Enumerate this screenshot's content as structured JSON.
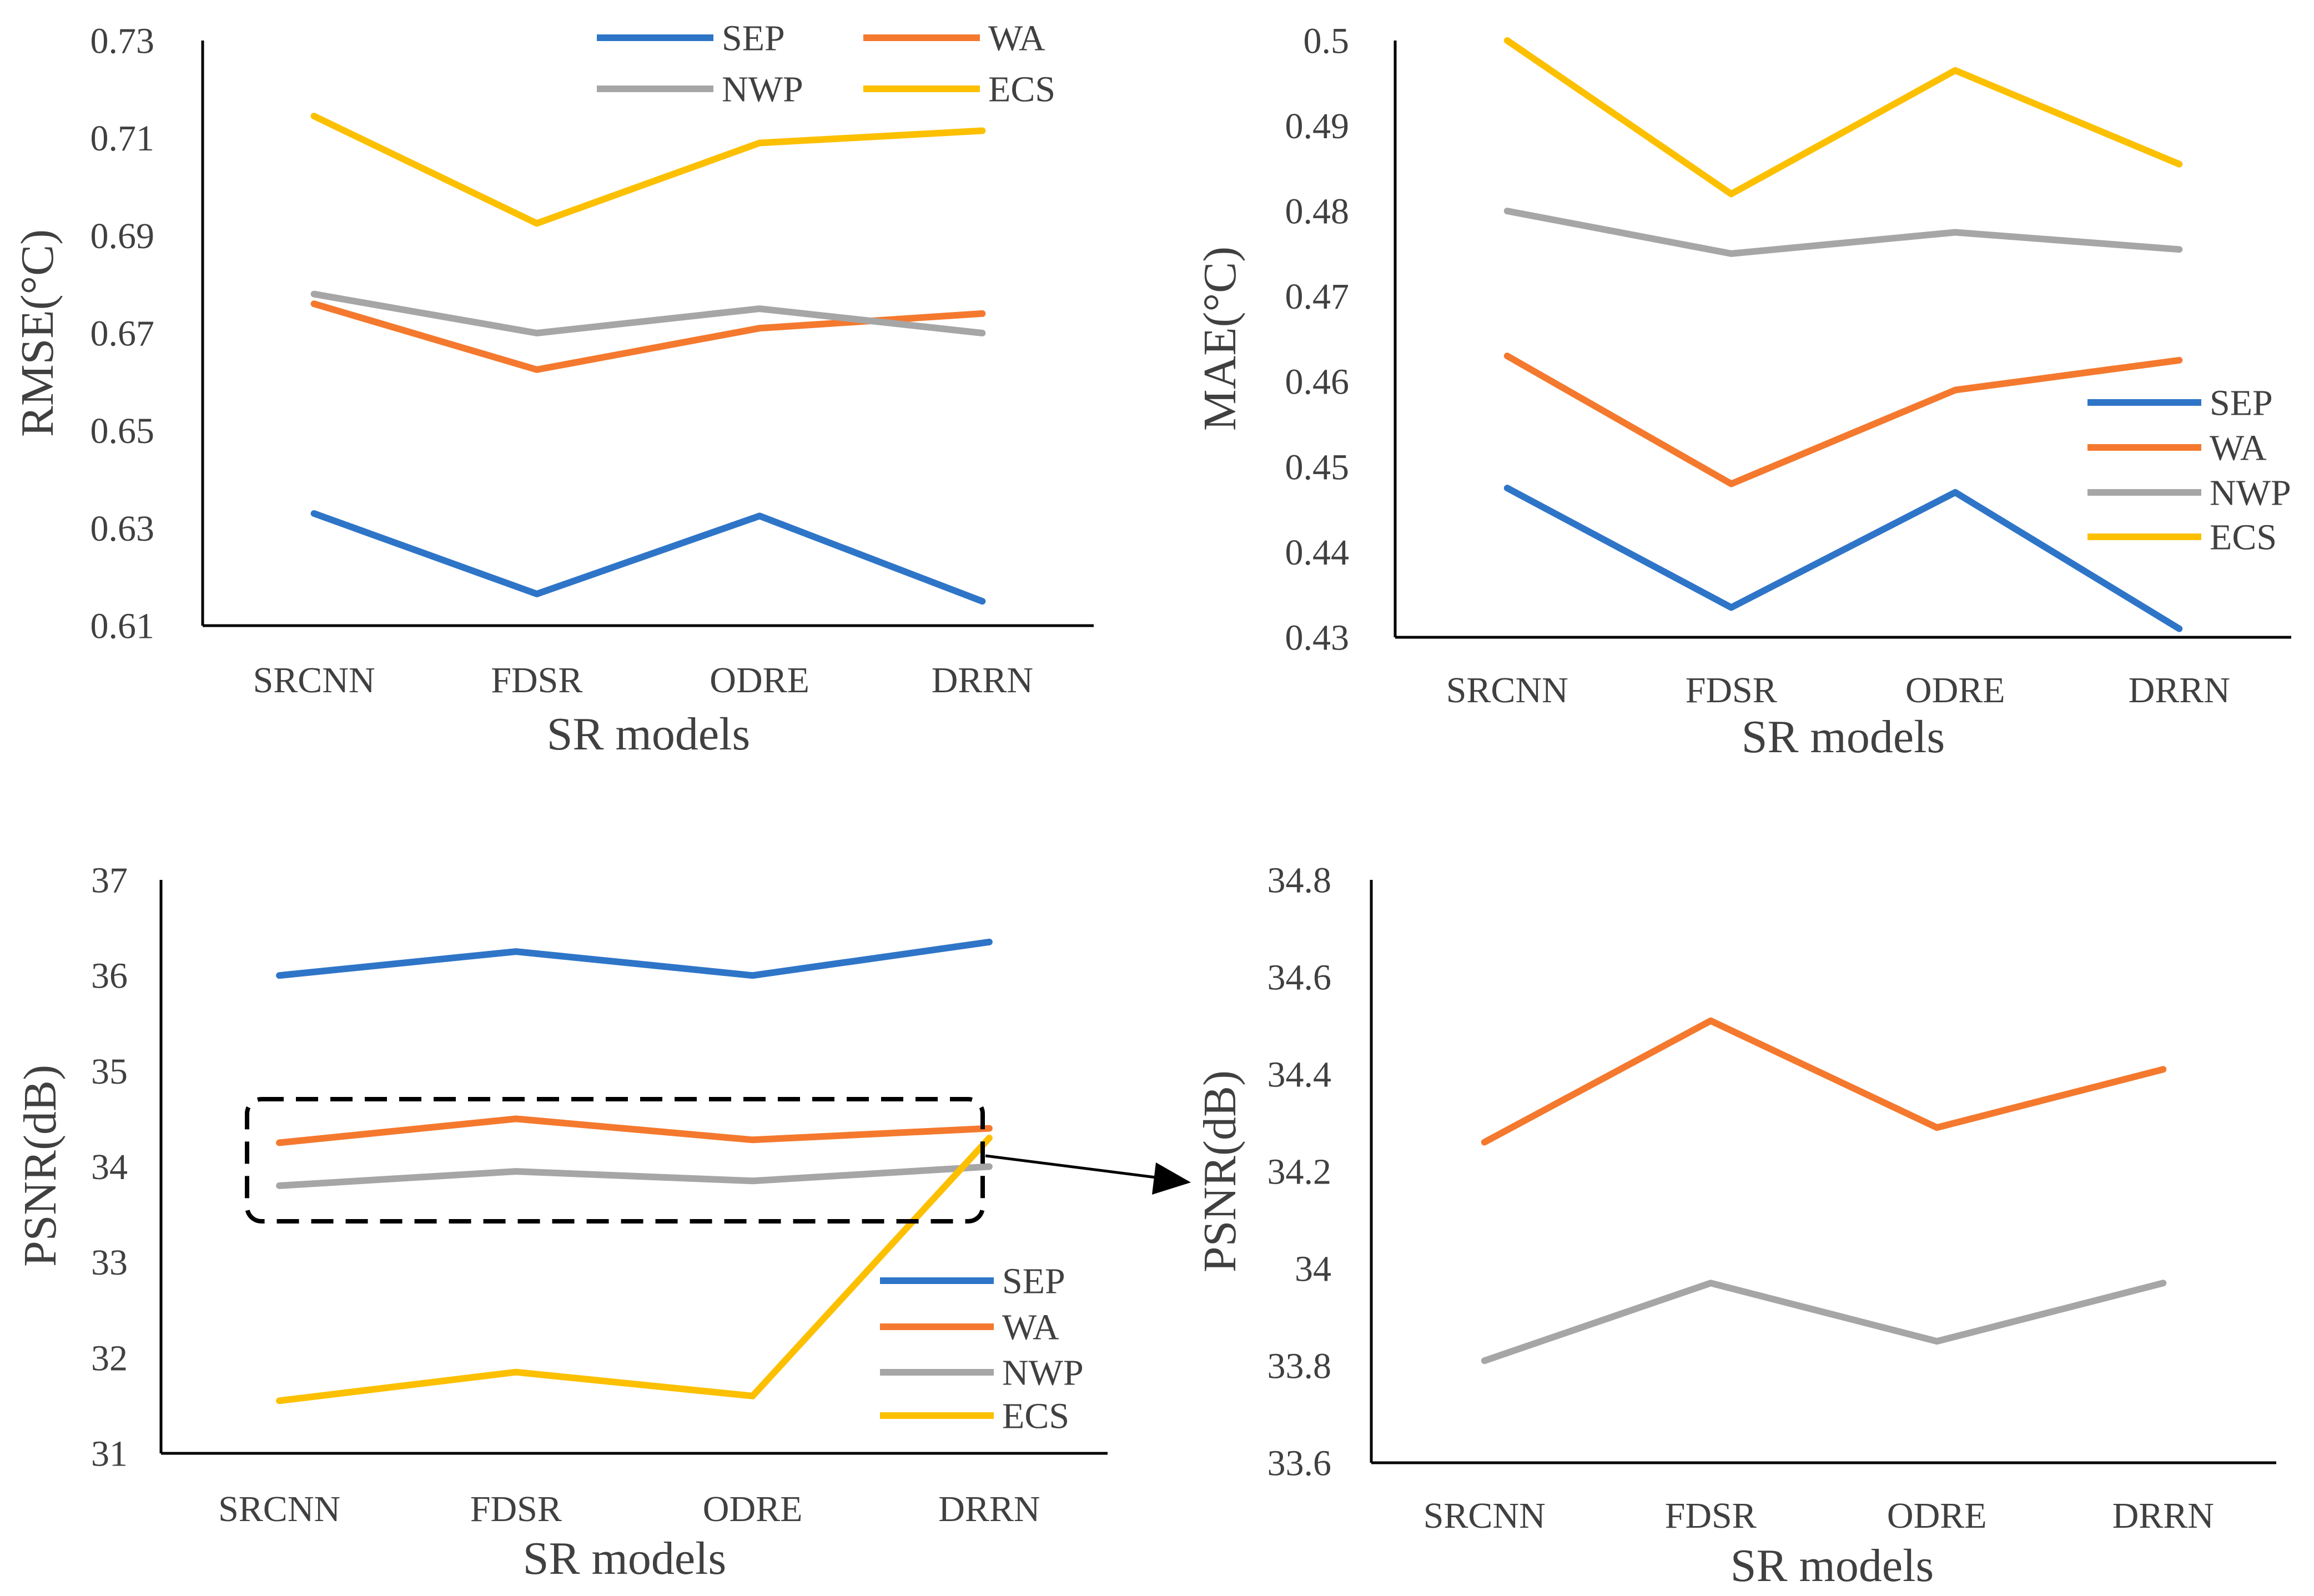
{
  "colors": {
    "SEP": "#2e75c8",
    "WA": "#f4792e",
    "NWP": "#a6a6a6",
    "ECS": "#fcc000",
    "axis": "#000000",
    "text": "#404040"
  },
  "chart_data": [
    {
      "id": "rmse",
      "type": "line",
      "categories": [
        "SRCNN",
        "FDSR",
        "ODRE",
        "DRRN"
      ],
      "xlabel": "SR models",
      "ylabel": "RMSE(°C)",
      "ylim": [
        0.61,
        0.73
      ],
      "yticks": [
        "0.61",
        "0.63",
        "0.65",
        "0.67",
        "0.69",
        "0.71",
        "0.73"
      ],
      "grid": false,
      "legend": "top",
      "series": [
        {
          "name": "SEP",
          "values": [
            0.633,
            0.6165,
            0.6325,
            0.615
          ]
        },
        {
          "name": "WA",
          "values": [
            0.676,
            0.6625,
            0.671,
            0.674
          ]
        },
        {
          "name": "NWP",
          "values": [
            0.678,
            0.67,
            0.675,
            0.67
          ]
        },
        {
          "name": "ECS",
          "values": [
            0.7145,
            0.6925,
            0.709,
            0.7115
          ]
        }
      ]
    },
    {
      "id": "mae",
      "type": "line",
      "categories": [
        "SRCNN",
        "FDSR",
        "ODRE",
        "DRRN"
      ],
      "xlabel": "SR models",
      "ylabel": "MAE(°C)",
      "ylim": [
        0.43,
        0.5
      ],
      "yticks": [
        "0.43",
        "0.44",
        "0.45",
        "0.46",
        "0.47",
        "0.48",
        "0.49",
        "0.5"
      ],
      "grid": false,
      "legend": "right",
      "series": [
        {
          "name": "SEP",
          "values": [
            0.4475,
            0.4335,
            0.447,
            0.431
          ]
        },
        {
          "name": "WA",
          "values": [
            0.463,
            0.448,
            0.459,
            0.4625
          ]
        },
        {
          "name": "NWP",
          "values": [
            0.48,
            0.475,
            0.4775,
            0.4755
          ]
        },
        {
          "name": "ECS",
          "values": [
            0.5,
            0.482,
            0.4965,
            0.4855
          ]
        }
      ]
    },
    {
      "id": "psnr",
      "type": "line",
      "categories": [
        "SRCNN",
        "FDSR",
        "ODRE",
        "DRRN"
      ],
      "xlabel": "SR models",
      "ylabel": "PSNR(dB)",
      "ylim": [
        31,
        37
      ],
      "yticks": [
        "31",
        "32",
        "33",
        "34",
        "35",
        "36",
        "37"
      ],
      "grid": false,
      "legend": "bottom-right",
      "series": [
        {
          "name": "SEP",
          "values": [
            36.0,
            36.25,
            36.0,
            36.35
          ]
        },
        {
          "name": "WA",
          "values": [
            34.25,
            34.5,
            34.28,
            34.4
          ]
        },
        {
          "name": "NWP",
          "values": [
            33.8,
            33.95,
            33.85,
            34.0
          ]
        },
        {
          "name": "ECS",
          "values": [
            31.55,
            31.85,
            31.6,
            34.3
          ]
        }
      ]
    },
    {
      "id": "psnr-zoom",
      "type": "line",
      "categories": [
        "SRCNN",
        "FDSR",
        "ODRE",
        "DRRN"
      ],
      "xlabel": "SR models",
      "ylabel": "PSNR(dB)",
      "ylim": [
        33.6,
        34.8
      ],
      "yticks": [
        "33.6",
        "33.8",
        "34",
        "34.2",
        "34.4",
        "34.6",
        "34.8"
      ],
      "grid": false,
      "legend": "none",
      "series": [
        {
          "name": "WA",
          "values": [
            34.26,
            34.51,
            34.29,
            34.41
          ]
        },
        {
          "name": "NWP",
          "values": [
            33.81,
            33.97,
            33.85,
            33.97
          ]
        }
      ]
    }
  ]
}
